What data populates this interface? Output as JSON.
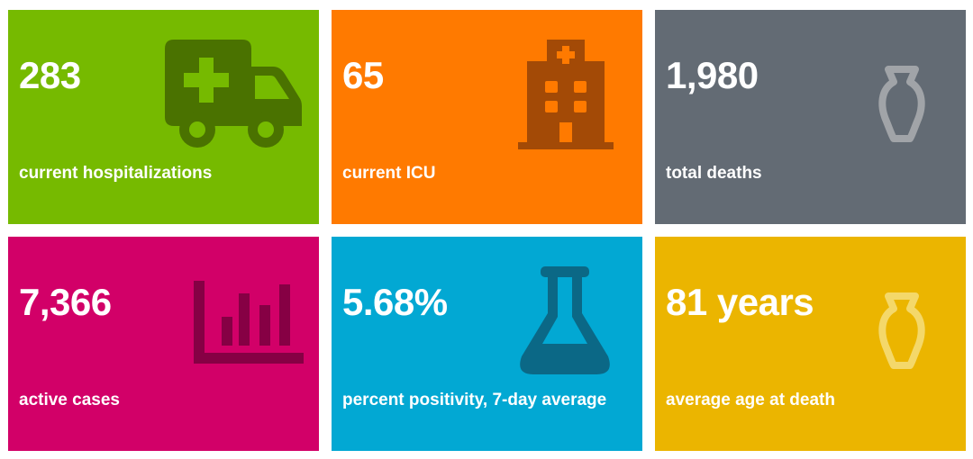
{
  "cards": [
    {
      "value": "283",
      "label": "current hospitalizations",
      "icon": "ambulance-icon",
      "bg_color": "#76BA00",
      "icon_color": "#4A7200"
    },
    {
      "value": "65",
      "label": "current ICU",
      "icon": "hospital-building-icon",
      "bg_color": "#FF7A00",
      "icon_color": "#A34A06"
    },
    {
      "value": "1,980",
      "label": "total deaths",
      "icon": "urn-icon",
      "bg_color": "#636B74",
      "icon_color": "#A1A4A8"
    },
    {
      "value": "7,366",
      "label": "active cases",
      "icon": "bar-chart-icon",
      "bg_color": "#D20068",
      "icon_color": "#860044"
    },
    {
      "value": "5.68%",
      "label": "percent positivity, 7-day average",
      "icon": "flask-icon",
      "bg_color": "#02A8D3",
      "icon_color": "#0B6886"
    },
    {
      "value": "81 years",
      "label": "average age at death",
      "icon": "urn-icon",
      "bg_color": "#EBB500",
      "icon_color": "#F4D86A"
    }
  ]
}
